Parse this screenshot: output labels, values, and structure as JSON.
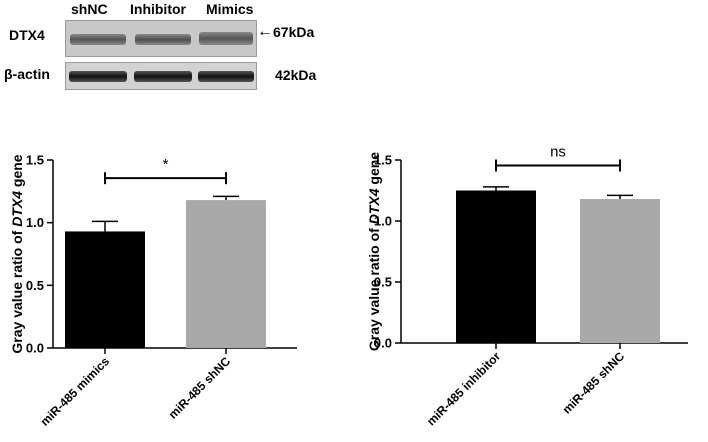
{
  "blot": {
    "lanes": [
      "shNC",
      "Inhibitor",
      "Mimics"
    ],
    "rows": [
      {
        "protein": "DTX4",
        "size": "67kDa",
        "arrow": "←"
      },
      {
        "protein": "β-actin",
        "size": "42kDa"
      }
    ]
  },
  "chart_data": [
    {
      "type": "bar",
      "categories": [
        "miR-485 mimics",
        "miR-485 shNC"
      ],
      "values": [
        0.93,
        1.18
      ],
      "errors": [
        0.08,
        0.03
      ],
      "colors": [
        "#000000",
        "#a9a9a9"
      ],
      "ylabel": "Gray value ratio of DTX4 gene",
      "ylabel_parts": [
        "Gray value ratio of ",
        "DTX4",
        " gene"
      ],
      "ylim": [
        0,
        1.5
      ],
      "yticks": [
        "0.0",
        "0.5",
        "1.0",
        "1.5"
      ],
      "significance": "*"
    },
    {
      "type": "bar",
      "categories": [
        "miR-485 inhibitor",
        "miR-485 shNC"
      ],
      "values": [
        1.25,
        1.18
      ],
      "errors": [
        0.03,
        0.03
      ],
      "colors": [
        "#000000",
        "#a9a9a9"
      ],
      "ylabel": "Gray value ratio of DTX4 gene",
      "ylabel_parts": [
        "Gray value ratio of ",
        "DTX4",
        " gene"
      ],
      "ylim": [
        0,
        1.5
      ],
      "yticks": [
        "0.0",
        "0.5",
        "1.0",
        "1.5"
      ],
      "significance": "ns"
    }
  ]
}
